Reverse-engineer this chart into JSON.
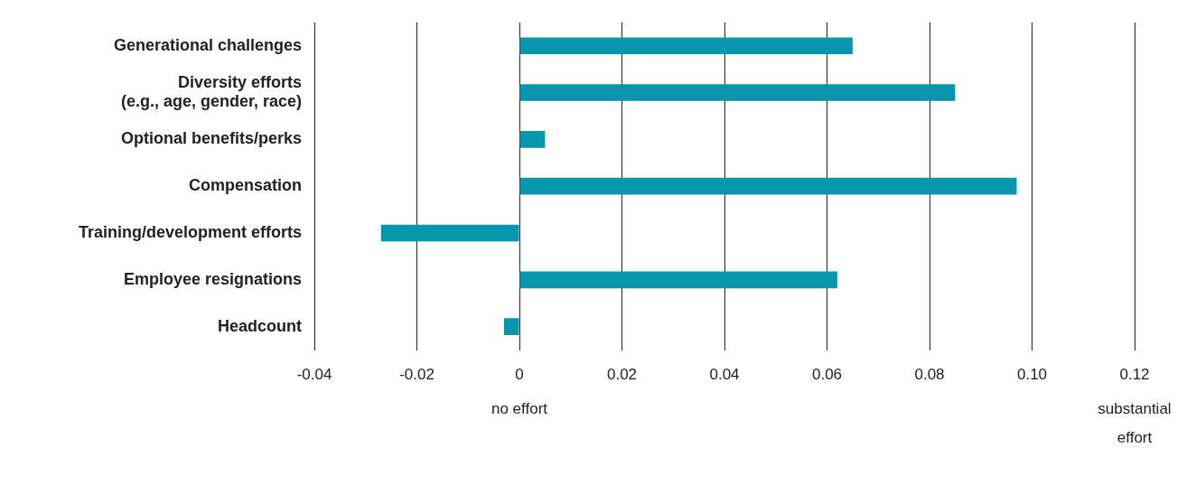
{
  "chart_data": {
    "type": "bar",
    "orientation": "horizontal",
    "categories": [
      "Generational challenges",
      [
        "Diversity efforts",
        "(e.g., age, gender, race)"
      ],
      "Optional benefits/perks",
      "Compensation",
      "Training/development efforts",
      "Employee resignations",
      "Headcount"
    ],
    "values": [
      0.065,
      0.085,
      0.005,
      0.097,
      -0.027,
      0.062,
      -0.003
    ],
    "color": "#0796ae",
    "xlim": [
      -0.04,
      0.12
    ],
    "xticks": [
      -0.04,
      -0.02,
      0,
      0.02,
      0.04,
      0.06,
      0.08,
      {
        "value": 0.1,
        "label": "0.10"
      },
      0.12
    ],
    "grid": "x",
    "annotations": [
      "no effort",
      "substantial\neffort"
    ]
  }
}
